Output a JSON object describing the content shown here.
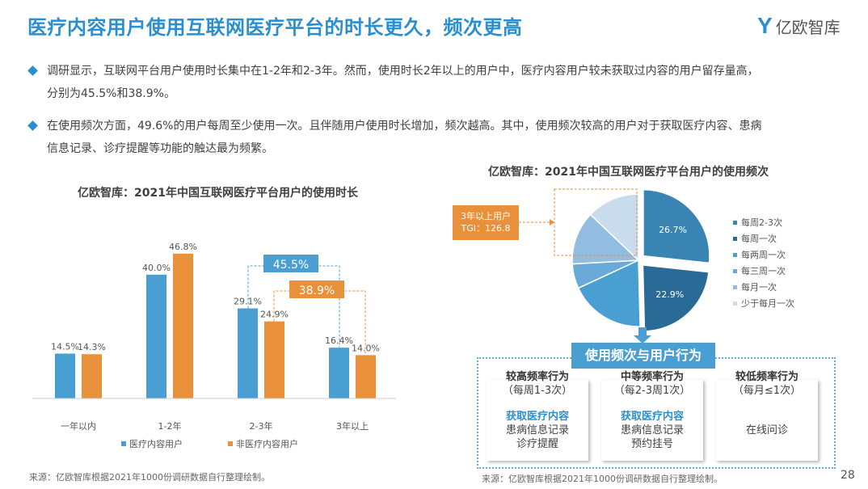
{
  "header": {
    "title": "医疗内容用户使用互联网医疗平台的时长更久，频次更高",
    "logo_text": "亿欧智库"
  },
  "bullets": [
    {
      "line1": "调研显示，互联网平台用户使用时长集中在1-2年和2-3年。然而，使用时长2年以上的用户中，医疗内容用户较未获取过内容的用户留存量高，",
      "line2": "分别为45.5%和38.9%。"
    },
    {
      "line1": "在使用频次方面，49.6%的用户每周至少使用一次。且伴随用户使用时长增加，频次越高。其中，使用频次较高的用户对于获取医疗内容、患病",
      "line2": "信息记录、诊疗提醒等功能的触达最为频繁。"
    }
  ],
  "chart_data": [
    {
      "type": "bar",
      "title": "亿欧智库：2021年中国互联网医疗平台用户的使用时长",
      "categories": [
        "一年以内",
        "1-2年",
        "2-3年",
        "3年以上"
      ],
      "series": [
        {
          "name": "医疗内容用户",
          "color": "#4a9fd2",
          "values": [
            14.5,
            40.0,
            29.1,
            16.4
          ],
          "labels": [
            "14.5%",
            "40.0%",
            "29.1%",
            "16.4%"
          ]
        },
        {
          "name": "非医疗内容用户",
          "color": "#e8903a",
          "values": [
            14.3,
            46.8,
            24.9,
            14.0
          ],
          "labels": [
            "14.3%",
            "46.8%",
            "24.9%",
            "14.0%"
          ]
        }
      ],
      "annotations": [
        {
          "text": "45.5%",
          "color": "#4a9fd2"
        },
        {
          "text": "38.9%",
          "color": "#e8903a"
        }
      ],
      "ylim": [
        0,
        50
      ],
      "legend": "bottom"
    },
    {
      "type": "pie",
      "title": "亿欧智库：2021年中国互联网医疗平台用户的使用频次",
      "slices": [
        {
          "name": "每周2-3次",
          "value": 26.7,
          "label": "26.7%",
          "color": "#3a84b4"
        },
        {
          "name": "每周一次",
          "value": 22.9,
          "label": "22.9%",
          "color": "#2a6a96"
        },
        {
          "name": "每两周一次",
          "value": 18.5,
          "label": "",
          "color": "#4a9fd2"
        },
        {
          "name": "每三周一次",
          "value": 6.0,
          "label": "",
          "color": "#6aaad8"
        },
        {
          "name": "每月一次",
          "value": 13.0,
          "label": "",
          "color": "#93bde0"
        },
        {
          "name": "少于每月一次",
          "value": 12.9,
          "label": "",
          "color": "#c9dcee"
        }
      ],
      "legend": "right",
      "callout": {
        "line1": "3年以上用户",
        "line2": "TGI：126.8"
      }
    }
  ],
  "behavior": {
    "title": "使用频次与用户行为",
    "cards": [
      {
        "title": "较高频率行为",
        "sub": "（每周1-3次）",
        "highlight": "获取医疗内容",
        "items": [
          "患病信息记录",
          "诊疗提醒"
        ]
      },
      {
        "title": "中等频率行为",
        "sub": "（每2-3周1次）",
        "highlight": "获取医疗内容",
        "items": [
          "患病信息记录",
          "预约挂号"
        ]
      },
      {
        "title": "较低频率行为",
        "sub": "（每月≤1次）",
        "highlight": "",
        "items": [
          "在线问诊"
        ]
      }
    ]
  },
  "footer": {
    "source_left": "来源：亿欧智库根据2021年1000份调研数据自行整理绘制。",
    "source_right": "来源：亿欧智库根据2021年1000份调研数据自行整理绘制。",
    "page": "28"
  }
}
